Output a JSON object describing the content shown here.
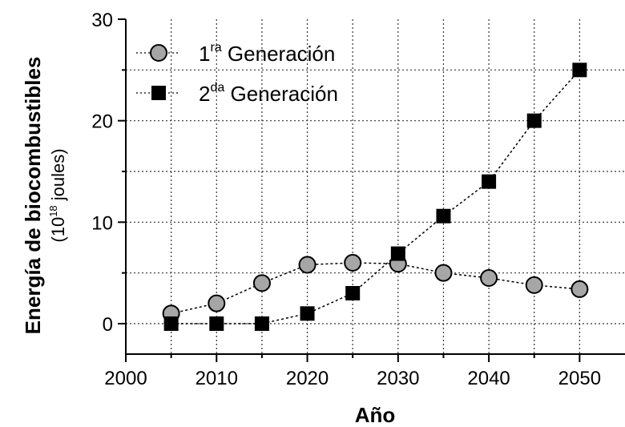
{
  "chart_data": {
    "type": "line",
    "x": [
      2005,
      2010,
      2015,
      2020,
      2025,
      2030,
      2035,
      2040,
      2045,
      2050
    ],
    "series": [
      {
        "name": "1ra Generación",
        "marker": "circle",
        "color": "#a6a6a6",
        "values": [
          1,
          2,
          4,
          5.8,
          6,
          5.9,
          5,
          4.5,
          3.8,
          3.4
        ]
      },
      {
        "name": "2da Generación",
        "marker": "square",
        "color": "#000000",
        "values": [
          0,
          0,
          0,
          1,
          3,
          6.9,
          10.6,
          14,
          20,
          25
        ]
      }
    ],
    "xlim": [
      2000,
      2055
    ],
    "ylim": [
      -3,
      30
    ],
    "xticks": [
      "2000",
      "2010",
      "2020",
      "2030",
      "2040",
      "2050"
    ],
    "yticks": [
      "0",
      "10",
      "20",
      "30"
    ],
    "xlabel": "Año",
    "ylabel": "Energía de biocombustibles",
    "ylabel_unit": {
      "base": "(10",
      "exp": "18",
      "rest": " joules)"
    },
    "legend": [
      {
        "main": "1",
        "sup": "ra",
        "rest": " Generación"
      },
      {
        "main": "2",
        "sup": "da",
        "rest": " Generación"
      }
    ],
    "legend_position": "top-left",
    "grid": true
  }
}
